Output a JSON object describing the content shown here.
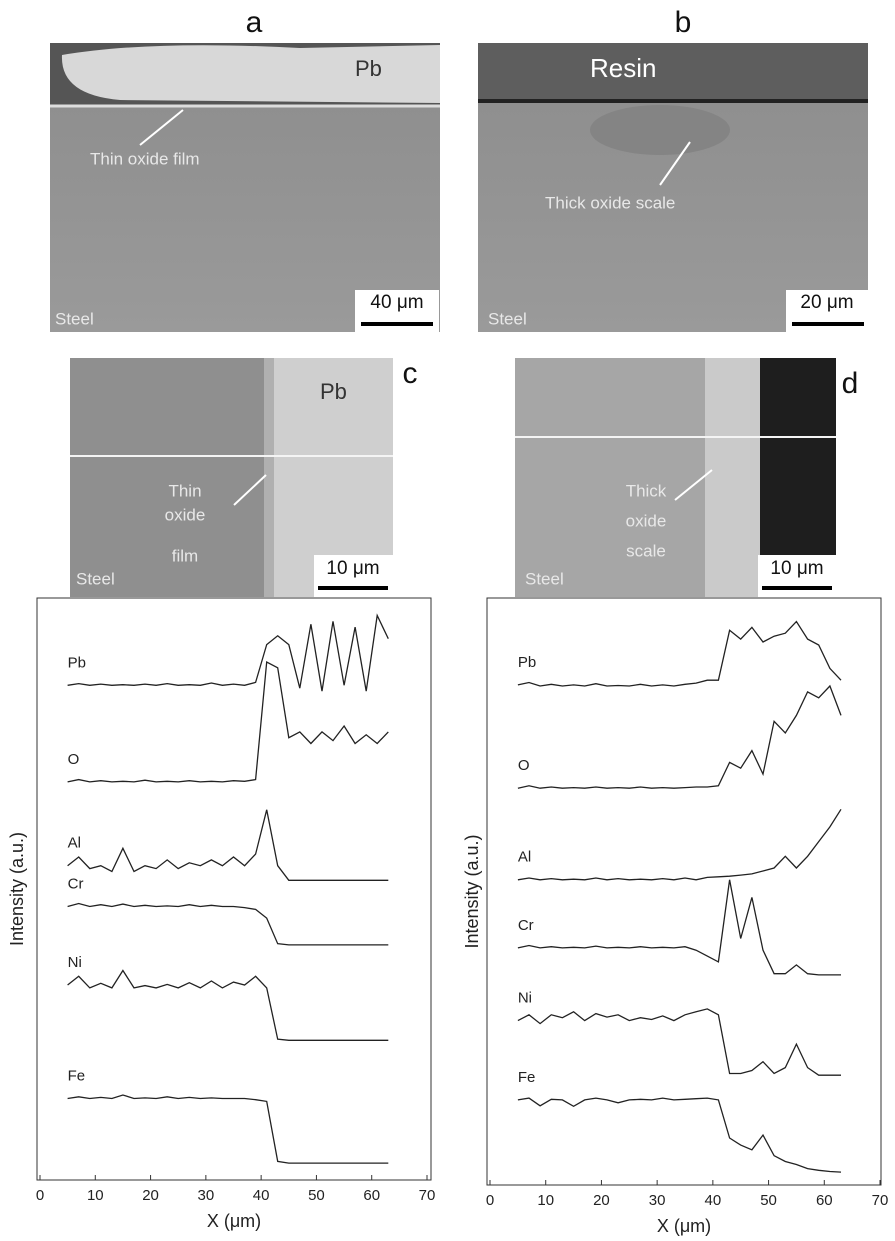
{
  "panels": {
    "a": {
      "letter": "a",
      "material": "Pb",
      "note": "Thin oxide film",
      "base": "Steel",
      "scale": "40 μm"
    },
    "b": {
      "letter": "b",
      "material": "Resin",
      "note": "Thick oxide scale",
      "base": "Steel",
      "scale": "20 μm"
    },
    "c": {
      "letter": "c",
      "material": "Pb",
      "note": [
        "Thin",
        "oxide",
        "film"
      ],
      "base": "Steel",
      "scale": "10 μm"
    },
    "d": {
      "letter": "d",
      "note": [
        "Thick",
        "oxide",
        "scale"
      ],
      "base": "Steel",
      "scale": "10 μm"
    }
  },
  "chart_data": [
    {
      "type": "line",
      "x_label": "X (μm)",
      "y_label": "Intensity (a.u.)",
      "xlim": [
        0,
        70
      ],
      "xticks": [
        0,
        10,
        20,
        30,
        40,
        50,
        60,
        70
      ],
      "ylim": [
        0,
        100
      ],
      "x": [
        5,
        7,
        9,
        11,
        13,
        15,
        17,
        19,
        21,
        23,
        25,
        27,
        29,
        31,
        33,
        35,
        37,
        39,
        41,
        43,
        45,
        47,
        49,
        51,
        53,
        55,
        57,
        59,
        61,
        63
      ],
      "series": [
        {
          "name": "Pb",
          "color": "#222222",
          "values": [
            85,
            85.3,
            85,
            85.2,
            85,
            85.1,
            85,
            85.2,
            85,
            85.3,
            85,
            85.1,
            85,
            85.4,
            85,
            85.2,
            85,
            85.5,
            92,
            93.5,
            92,
            84.5,
            95.5,
            84,
            96,
            85,
            95,
            84,
            97,
            93
          ]
        },
        {
          "name": "O",
          "color": "#222222",
          "values": [
            68.4,
            68.8,
            68.4,
            68.6,
            68.4,
            68.5,
            68.4,
            68.7,
            68.4,
            68.5,
            68.4,
            68.6,
            68.4,
            68.5,
            68.4,
            68.6,
            68.5,
            68.8,
            89,
            88,
            76,
            77,
            75,
            77,
            75.5,
            78,
            75,
            76.5,
            75,
            77
          ]
        },
        {
          "name": "Al",
          "color": "#222222",
          "values": [
            54,
            55.5,
            53.5,
            54,
            53,
            57,
            53,
            54,
            53.5,
            55,
            53.5,
            54.5,
            54,
            55,
            54,
            55.5,
            54,
            56,
            63.6,
            54,
            51.5,
            51.5,
            51.5,
            51.5,
            51.5,
            51.5,
            51.5,
            51.5,
            51.5,
            51.5
          ]
        },
        {
          "name": "Cr",
          "color": "#222222",
          "values": [
            47,
            47.5,
            47,
            47.3,
            47,
            47.4,
            47,
            47.2,
            47,
            47.1,
            47,
            47.3,
            47,
            47.2,
            47,
            47,
            46.8,
            46.5,
            45,
            40.6,
            40.4,
            40.4,
            40.4,
            40.4,
            40.4,
            40.4,
            40.4,
            40.4,
            40.4,
            40.4
          ]
        },
        {
          "name": "Ni",
          "color": "#222222",
          "values": [
            33.5,
            35,
            33,
            33.8,
            33,
            36,
            33,
            33.4,
            33,
            33.6,
            33,
            33.9,
            33,
            34.2,
            33,
            34,
            33.5,
            35,
            33,
            24.2,
            24,
            24,
            24,
            24,
            24,
            24,
            24,
            24,
            24,
            24
          ]
        },
        {
          "name": "Fe",
          "color": "#222222",
          "values": [
            14,
            14.3,
            14,
            14.2,
            14,
            14.6,
            14,
            14.1,
            14,
            14.3,
            14,
            14.2,
            14,
            14.1,
            14,
            14,
            14,
            13.8,
            13.5,
            3.2,
            2.9,
            2.9,
            2.9,
            2.9,
            2.9,
            2.9,
            2.9,
            2.9,
            2.9,
            2.9
          ]
        }
      ]
    },
    {
      "type": "line",
      "x_label": "X (μm)",
      "y_label": "Intensity (a.u.)",
      "xlim": [
        0,
        70
      ],
      "xticks": [
        0,
        10,
        20,
        30,
        40,
        50,
        60,
        70
      ],
      "ylim": [
        0,
        100
      ],
      "x": [
        5,
        7,
        9,
        11,
        13,
        15,
        17,
        19,
        21,
        23,
        25,
        27,
        29,
        31,
        33,
        35,
        37,
        39,
        41,
        43,
        45,
        47,
        49,
        51,
        53,
        55,
        57,
        59,
        61,
        63
      ],
      "series": [
        {
          "name": "Pb",
          "color": "#222222",
          "values": [
            85.2,
            85.6,
            85,
            85.3,
            85,
            85.2,
            85,
            85.4,
            85,
            85.1,
            85,
            85.3,
            85,
            85.2,
            85,
            85.3,
            85.5,
            86,
            86,
            94.5,
            93,
            95,
            92.5,
            93.5,
            94,
            96,
            93,
            92,
            88,
            86
          ]
        },
        {
          "name": "O",
          "color": "#222222",
          "values": [
            67.6,
            68,
            67.6,
            67.8,
            67.6,
            67.7,
            67.6,
            67.8,
            67.6,
            67.7,
            67.6,
            67.8,
            67.6,
            67.7,
            67.6,
            67.7,
            67.8,
            67.8,
            68,
            72,
            71,
            74,
            70,
            79,
            77,
            80,
            84,
            83,
            85,
            80
          ]
        },
        {
          "name": "Al",
          "color": "#222222",
          "values": [
            52,
            52.3,
            52,
            52.2,
            52,
            52.1,
            52,
            52.3,
            52,
            52.2,
            52,
            52.1,
            52,
            52.2,
            52,
            52.3,
            52,
            52.4,
            52.5,
            52.6,
            52.8,
            53,
            53.5,
            54,
            56,
            54,
            56,
            58.5,
            61,
            64
          ]
        },
        {
          "name": "Cr",
          "color": "#222222",
          "values": [
            40.4,
            40.8,
            40.4,
            40.6,
            40.4,
            40.5,
            40.4,
            40.7,
            40.4,
            40.5,
            40.4,
            40.6,
            40.4,
            40.5,
            40.4,
            40.6,
            40,
            39,
            38,
            52,
            42,
            49,
            40,
            36,
            36,
            37.5,
            36,
            35.8,
            35.8,
            35.8
          ]
        },
        {
          "name": "Ni",
          "color": "#222222",
          "values": [
            28,
            29,
            27.5,
            29,
            28.5,
            29.5,
            28,
            29.2,
            28.6,
            29,
            28,
            28.5,
            28.2,
            28.8,
            28,
            29,
            29.5,
            30,
            29,
            19,
            19,
            19.5,
            21,
            19,
            20,
            24,
            20,
            18.7,
            18.7,
            18.7
          ]
        },
        {
          "name": "Fe",
          "color": "#222222",
          "values": [
            14.5,
            14.8,
            13.5,
            14.6,
            14.5,
            13.4,
            14.5,
            14.8,
            14.5,
            14,
            14.5,
            14.6,
            14.5,
            14.8,
            14.5,
            14.6,
            14.7,
            14.8,
            14.5,
            8,
            6.8,
            6,
            8.5,
            5,
            4,
            3.5,
            2.8,
            2.5,
            2.3,
            2.2
          ]
        }
      ]
    }
  ]
}
